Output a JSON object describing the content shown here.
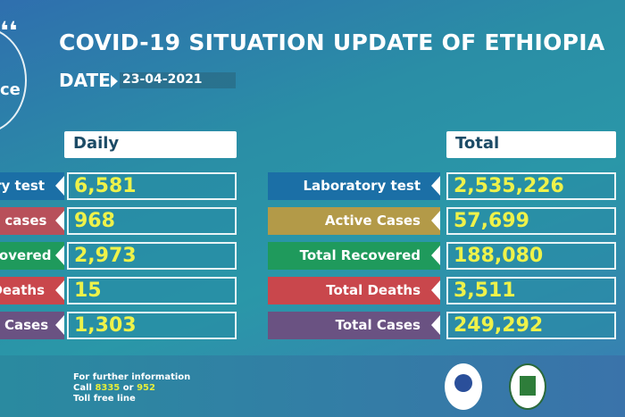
{
  "title": "COVID-19 SITUATION UPDATE OF ETHIOPIA",
  "date_label": "DATE",
  "date": "23-04-2021",
  "logo_text": "ce",
  "daily": {
    "header": "Daily",
    "rows": [
      {
        "label": "ry test",
        "value": "6,581",
        "color": "#1b6fa6"
      },
      {
        "label": "e cases",
        "value": "968",
        "color": "#b8505a"
      },
      {
        "label": "covered",
        "value": "2,973",
        "color": "#1f9a5c"
      },
      {
        "label": "Deaths",
        "value": "15",
        "color": "#c9474c"
      },
      {
        "label": "y Cases",
        "value": "1,303",
        "color": "#6a5282"
      }
    ]
  },
  "total": {
    "header": "Total",
    "rows": [
      {
        "label": "Laboratory test",
        "value": "2,535,226",
        "color": "#1b6fa6"
      },
      {
        "label": "Active Cases",
        "value": "57,699",
        "color": "#b39a48"
      },
      {
        "label": "Total Recovered",
        "value": "188,080",
        "color": "#1f9a5c"
      },
      {
        "label": "Total Deaths",
        "value": "3,511",
        "color": "#c9474c"
      },
      {
        "label": "Total Cases",
        "value": "249,292",
        "color": "#6a5282"
      }
    ]
  },
  "footer": {
    "line1": "For further information",
    "call": "Call",
    "num1": "8335",
    "or": "or",
    "num2": "952",
    "line3": "Toll free line"
  }
}
